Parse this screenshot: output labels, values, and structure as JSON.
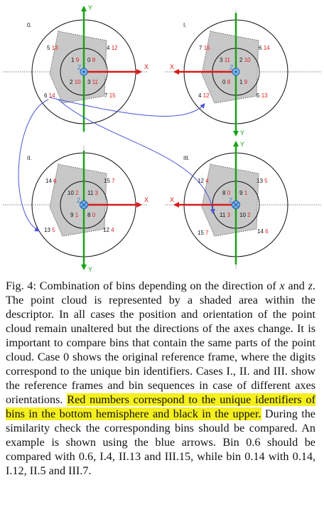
{
  "panels": [
    {
      "case": "0.",
      "y_axis": "Y",
      "x_axis": "X",
      "z_axis": "Z",
      "inner": [
        {
          "black": "1",
          "red": "9"
        },
        {
          "black": "0",
          "red": "8"
        },
        {
          "black": "2",
          "red": "10"
        },
        {
          "black": "3",
          "red": "11"
        }
      ],
      "outer": [
        {
          "black": "5",
          "red": "13"
        },
        {
          "black": "4",
          "red": "12"
        },
        {
          "black": "6",
          "red": "14"
        },
        {
          "black": "7",
          "red": "15"
        }
      ]
    },
    {
      "case": "I.",
      "y_axis": "Y",
      "x_axis": "X",
      "z_axis": "Z",
      "inner": [
        {
          "black": "3",
          "red": "11"
        },
        {
          "black": "2",
          "red": "10"
        },
        {
          "black": "0",
          "red": "8"
        },
        {
          "black": "1",
          "red": "9"
        }
      ],
      "outer": [
        {
          "black": "7",
          "red": "15"
        },
        {
          "black": "6",
          "red": "14"
        },
        {
          "black": "4",
          "red": "12"
        },
        {
          "black": "5",
          "red": "13"
        }
      ]
    },
    {
      "case": "II.",
      "y_axis": "Y",
      "x_axis": "X",
      "z_axis": "Z",
      "inner": [
        {
          "black": "10",
          "red": "2"
        },
        {
          "black": "11",
          "red": "3"
        },
        {
          "black": "9",
          "red": "1"
        },
        {
          "black": "8",
          "red": "0"
        }
      ],
      "outer": [
        {
          "black": "14",
          "red": "6"
        },
        {
          "black": "15",
          "red": "7"
        },
        {
          "black": "13",
          "red": "5"
        },
        {
          "black": "12",
          "red": "4"
        }
      ]
    },
    {
      "case": "III.",
      "y_axis": "Y",
      "x_axis": "X",
      "z_axis": "Z",
      "inner": [
        {
          "black": "8",
          "red": "0"
        },
        {
          "black": "9",
          "red": "1"
        },
        {
          "black": "11",
          "red": "3"
        },
        {
          "black": "10",
          "red": "2"
        }
      ],
      "outer": [
        {
          "black": "12",
          "red": "4"
        },
        {
          "black": "13",
          "red": "5"
        },
        {
          "black": "15",
          "red": "7"
        },
        {
          "black": "14",
          "red": "6"
        }
      ]
    }
  ],
  "caption": {
    "lead": "Fig. 4: Combination of bins depending on the direction of ",
    "var_x": "x",
    "and": " and ",
    "var_z": "z",
    "body1": ". The point cloud is represented by a shaded area within the descriptor. In all cases the position and orientation of the point cloud remain unaltered but the directions of the axes change. It is important to compare bins that contain the same parts of the point cloud. Case 0 shows the original reference frame, where the digits correspond to the unique bin identifiers. Cases I., II. and III. show the reference frames and bin sequences in case of different axes orientations. ",
    "highlight": "Red numbers correspond to the unique identifiers of bins in the bottom hemisphere and black in the upper.",
    "body2": " During the similarity check the corresponding bins should be compared. An example is shown using the blue arrows. Bin 0.6 should be compared with 0.6, I.4, II.13 and III.15, while bin 0.14 with 0.14, I.12, II.5 and III.7."
  },
  "colors": {
    "y_axis": "#16a316",
    "x_axis": "#d81b1b",
    "arrow": "#4a55d6",
    "shade": "#c8c8c8",
    "highlight": "#f5ef1f"
  }
}
